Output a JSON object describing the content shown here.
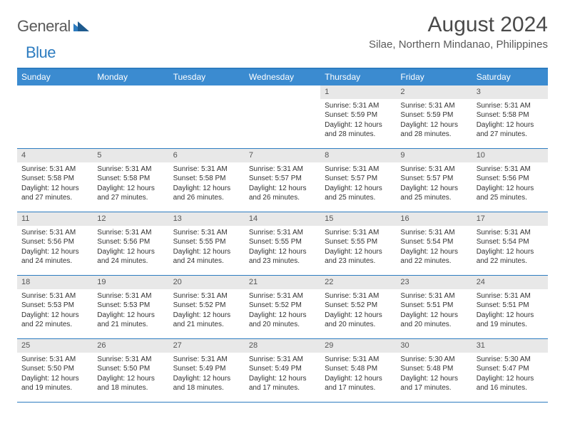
{
  "logo": {
    "general": "General",
    "blue": "Blue"
  },
  "title": "August 2024",
  "subtitle": "Silae, Northern Mindanao, Philippines",
  "colors": {
    "header_bg": "#3b8bd0",
    "header_text": "#ffffff",
    "border": "#2d7cc0",
    "daynum_bg": "#e8e8e8",
    "text": "#333333",
    "title_text": "#4a4a4a",
    "logo_gray": "#5a5a5a",
    "logo_blue": "#2d7cc0"
  },
  "day_names": [
    "Sunday",
    "Monday",
    "Tuesday",
    "Wednesday",
    "Thursday",
    "Friday",
    "Saturday"
  ],
  "weeks": [
    [
      {
        "n": "",
        "sr": "",
        "ss": "",
        "dl1": "",
        "dl2": ""
      },
      {
        "n": "",
        "sr": "",
        "ss": "",
        "dl1": "",
        "dl2": ""
      },
      {
        "n": "",
        "sr": "",
        "ss": "",
        "dl1": "",
        "dl2": ""
      },
      {
        "n": "",
        "sr": "",
        "ss": "",
        "dl1": "",
        "dl2": ""
      },
      {
        "n": "1",
        "sr": "Sunrise: 5:31 AM",
        "ss": "Sunset: 5:59 PM",
        "dl1": "Daylight: 12 hours",
        "dl2": "and 28 minutes."
      },
      {
        "n": "2",
        "sr": "Sunrise: 5:31 AM",
        "ss": "Sunset: 5:59 PM",
        "dl1": "Daylight: 12 hours",
        "dl2": "and 28 minutes."
      },
      {
        "n": "3",
        "sr": "Sunrise: 5:31 AM",
        "ss": "Sunset: 5:58 PM",
        "dl1": "Daylight: 12 hours",
        "dl2": "and 27 minutes."
      }
    ],
    [
      {
        "n": "4",
        "sr": "Sunrise: 5:31 AM",
        "ss": "Sunset: 5:58 PM",
        "dl1": "Daylight: 12 hours",
        "dl2": "and 27 minutes."
      },
      {
        "n": "5",
        "sr": "Sunrise: 5:31 AM",
        "ss": "Sunset: 5:58 PM",
        "dl1": "Daylight: 12 hours",
        "dl2": "and 27 minutes."
      },
      {
        "n": "6",
        "sr": "Sunrise: 5:31 AM",
        "ss": "Sunset: 5:58 PM",
        "dl1": "Daylight: 12 hours",
        "dl2": "and 26 minutes."
      },
      {
        "n": "7",
        "sr": "Sunrise: 5:31 AM",
        "ss": "Sunset: 5:57 PM",
        "dl1": "Daylight: 12 hours",
        "dl2": "and 26 minutes."
      },
      {
        "n": "8",
        "sr": "Sunrise: 5:31 AM",
        "ss": "Sunset: 5:57 PM",
        "dl1": "Daylight: 12 hours",
        "dl2": "and 25 minutes."
      },
      {
        "n": "9",
        "sr": "Sunrise: 5:31 AM",
        "ss": "Sunset: 5:57 PM",
        "dl1": "Daylight: 12 hours",
        "dl2": "and 25 minutes."
      },
      {
        "n": "10",
        "sr": "Sunrise: 5:31 AM",
        "ss": "Sunset: 5:56 PM",
        "dl1": "Daylight: 12 hours",
        "dl2": "and 25 minutes."
      }
    ],
    [
      {
        "n": "11",
        "sr": "Sunrise: 5:31 AM",
        "ss": "Sunset: 5:56 PM",
        "dl1": "Daylight: 12 hours",
        "dl2": "and 24 minutes."
      },
      {
        "n": "12",
        "sr": "Sunrise: 5:31 AM",
        "ss": "Sunset: 5:56 PM",
        "dl1": "Daylight: 12 hours",
        "dl2": "and 24 minutes."
      },
      {
        "n": "13",
        "sr": "Sunrise: 5:31 AM",
        "ss": "Sunset: 5:55 PM",
        "dl1": "Daylight: 12 hours",
        "dl2": "and 24 minutes."
      },
      {
        "n": "14",
        "sr": "Sunrise: 5:31 AM",
        "ss": "Sunset: 5:55 PM",
        "dl1": "Daylight: 12 hours",
        "dl2": "and 23 minutes."
      },
      {
        "n": "15",
        "sr": "Sunrise: 5:31 AM",
        "ss": "Sunset: 5:55 PM",
        "dl1": "Daylight: 12 hours",
        "dl2": "and 23 minutes."
      },
      {
        "n": "16",
        "sr": "Sunrise: 5:31 AM",
        "ss": "Sunset: 5:54 PM",
        "dl1": "Daylight: 12 hours",
        "dl2": "and 22 minutes."
      },
      {
        "n": "17",
        "sr": "Sunrise: 5:31 AM",
        "ss": "Sunset: 5:54 PM",
        "dl1": "Daylight: 12 hours",
        "dl2": "and 22 minutes."
      }
    ],
    [
      {
        "n": "18",
        "sr": "Sunrise: 5:31 AM",
        "ss": "Sunset: 5:53 PM",
        "dl1": "Daylight: 12 hours",
        "dl2": "and 22 minutes."
      },
      {
        "n": "19",
        "sr": "Sunrise: 5:31 AM",
        "ss": "Sunset: 5:53 PM",
        "dl1": "Daylight: 12 hours",
        "dl2": "and 21 minutes."
      },
      {
        "n": "20",
        "sr": "Sunrise: 5:31 AM",
        "ss": "Sunset: 5:52 PM",
        "dl1": "Daylight: 12 hours",
        "dl2": "and 21 minutes."
      },
      {
        "n": "21",
        "sr": "Sunrise: 5:31 AM",
        "ss": "Sunset: 5:52 PM",
        "dl1": "Daylight: 12 hours",
        "dl2": "and 20 minutes."
      },
      {
        "n": "22",
        "sr": "Sunrise: 5:31 AM",
        "ss": "Sunset: 5:52 PM",
        "dl1": "Daylight: 12 hours",
        "dl2": "and 20 minutes."
      },
      {
        "n": "23",
        "sr": "Sunrise: 5:31 AM",
        "ss": "Sunset: 5:51 PM",
        "dl1": "Daylight: 12 hours",
        "dl2": "and 20 minutes."
      },
      {
        "n": "24",
        "sr": "Sunrise: 5:31 AM",
        "ss": "Sunset: 5:51 PM",
        "dl1": "Daylight: 12 hours",
        "dl2": "and 19 minutes."
      }
    ],
    [
      {
        "n": "25",
        "sr": "Sunrise: 5:31 AM",
        "ss": "Sunset: 5:50 PM",
        "dl1": "Daylight: 12 hours",
        "dl2": "and 19 minutes."
      },
      {
        "n": "26",
        "sr": "Sunrise: 5:31 AM",
        "ss": "Sunset: 5:50 PM",
        "dl1": "Daylight: 12 hours",
        "dl2": "and 18 minutes."
      },
      {
        "n": "27",
        "sr": "Sunrise: 5:31 AM",
        "ss": "Sunset: 5:49 PM",
        "dl1": "Daylight: 12 hours",
        "dl2": "and 18 minutes."
      },
      {
        "n": "28",
        "sr": "Sunrise: 5:31 AM",
        "ss": "Sunset: 5:49 PM",
        "dl1": "Daylight: 12 hours",
        "dl2": "and 17 minutes."
      },
      {
        "n": "29",
        "sr": "Sunrise: 5:31 AM",
        "ss": "Sunset: 5:48 PM",
        "dl1": "Daylight: 12 hours",
        "dl2": "and 17 minutes."
      },
      {
        "n": "30",
        "sr": "Sunrise: 5:30 AM",
        "ss": "Sunset: 5:48 PM",
        "dl1": "Daylight: 12 hours",
        "dl2": "and 17 minutes."
      },
      {
        "n": "31",
        "sr": "Sunrise: 5:30 AM",
        "ss": "Sunset: 5:47 PM",
        "dl1": "Daylight: 12 hours",
        "dl2": "and 16 minutes."
      }
    ]
  ]
}
